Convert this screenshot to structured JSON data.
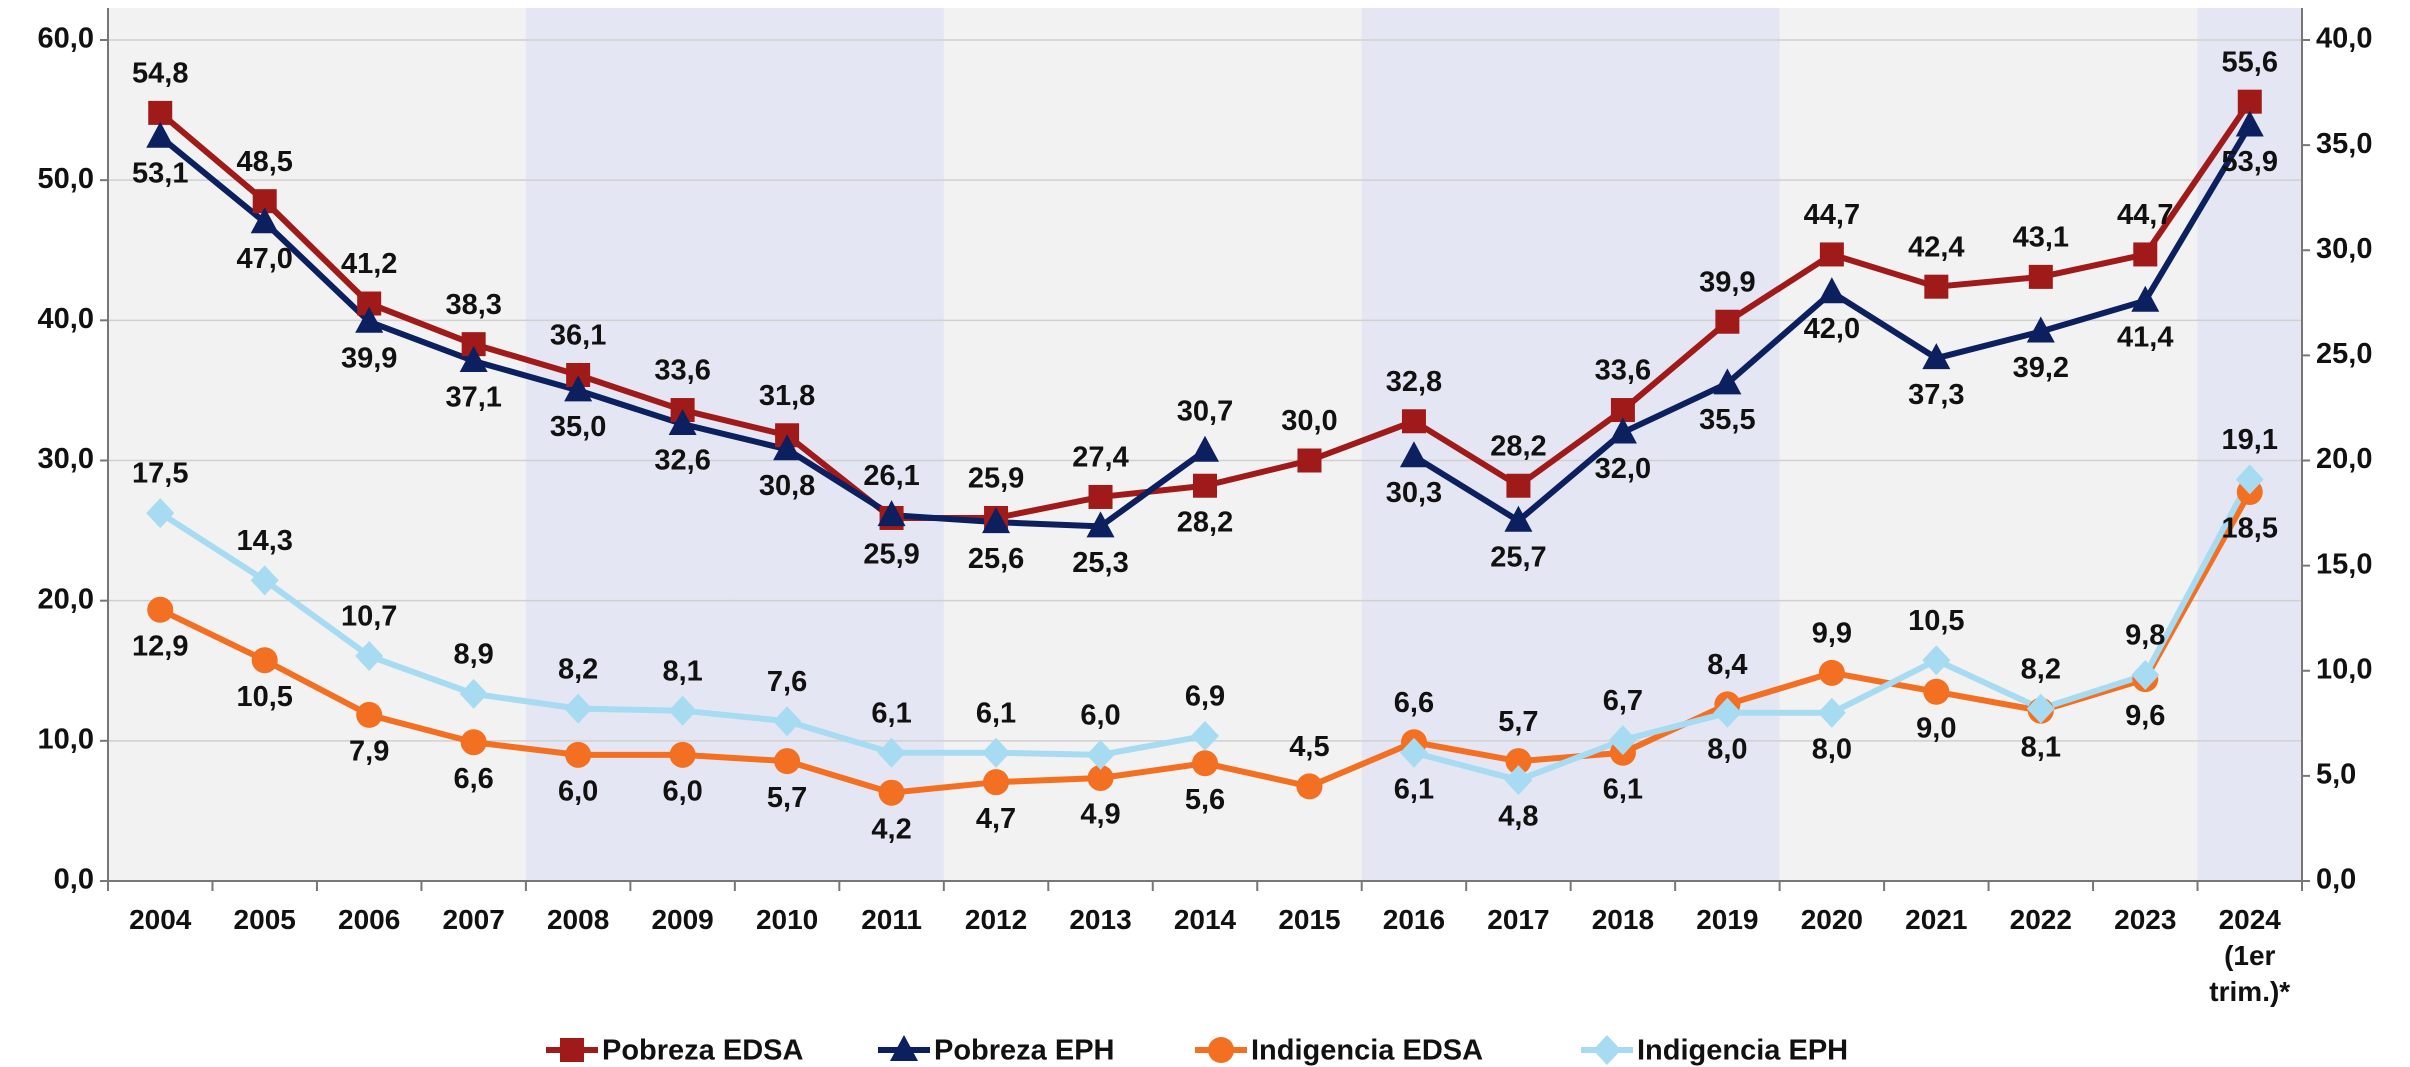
{
  "chart_data": {
    "type": "line",
    "categories": [
      "2004",
      "2005",
      "2006",
      "2007",
      "2008",
      "2009",
      "2010",
      "2011",
      "2012",
      "2013",
      "2014",
      "2015",
      "2016",
      "2017",
      "2018",
      "2019",
      "2020",
      "2021",
      "2022",
      "2023",
      "2024\n(1er\ntrim.)*"
    ],
    "ylim": [
      0,
      60
    ],
    "yticks": [
      {
        "value": 0,
        "label": "0,0"
      },
      {
        "value": 10,
        "label": "10,0"
      },
      {
        "value": 20,
        "label": "20,0"
      },
      {
        "value": 30,
        "label": "30,0"
      },
      {
        "value": 40,
        "label": "40,0"
      },
      {
        "value": 50,
        "label": "50,0"
      },
      {
        "value": 60,
        "label": "60,0"
      }
    ],
    "y2lim": [
      0,
      40
    ],
    "y2ticks": [
      {
        "value": 0,
        "label": "0,0"
      },
      {
        "value": 5,
        "label": "5,0"
      },
      {
        "value": 10,
        "label": "10,0"
      },
      {
        "value": 15,
        "label": "15,0"
      },
      {
        "value": 20,
        "label": "20,0"
      },
      {
        "value": 25,
        "label": "25,0"
      },
      {
        "value": 30,
        "label": "30,0"
      },
      {
        "value": 35,
        "label": "35,0"
      },
      {
        "value": 40,
        "label": "40,0"
      }
    ],
    "grid": true,
    "legend": "bottom",
    "series": [
      {
        "name": "Pobreza EDSA",
        "color": "#a01a1a",
        "marker": "square",
        "values": [
          54.8,
          48.5,
          41.2,
          38.3,
          36.1,
          33.6,
          31.8,
          25.9,
          25.9,
          27.4,
          28.2,
          30.0,
          32.8,
          28.2,
          33.6,
          39.9,
          44.7,
          42.4,
          43.1,
          44.7,
          55.6
        ],
        "value_labels": [
          "54,8",
          "48,5",
          "41,2",
          "38,3",
          "36,1",
          "33,6",
          "31,8",
          "25,9",
          "25,9",
          "27,4",
          "28,2",
          "30,0",
          "32,8",
          "28,2",
          "33,6",
          "39,9",
          "44,7",
          "42,4",
          "43,1",
          "44,7",
          "55,6"
        ]
      },
      {
        "name": "Pobreza EPH",
        "color": "#0c1f5e",
        "marker": "triangle",
        "values": [
          53.1,
          47.0,
          39.9,
          37.1,
          35.0,
          32.6,
          30.8,
          26.1,
          25.6,
          25.3,
          30.7,
          null,
          30.3,
          25.7,
          32.0,
          35.5,
          42.0,
          37.3,
          39.2,
          41.4,
          53.9
        ],
        "value_labels": [
          "53,1",
          "47,0",
          "39,9",
          "37,1",
          "35,0",
          "32,6",
          "30,8",
          "26,1",
          "25,6",
          "25,3",
          "30,7",
          null,
          "30,3",
          "25,7",
          "32,0",
          "35,5",
          "42,0",
          "37,3",
          "39,2",
          "41,4",
          "53,9"
        ]
      },
      {
        "name": "Indigencia EDSA",
        "color": "#f36f21",
        "marker": "circle",
        "axis": "y2",
        "values": [
          12.9,
          10.5,
          7.9,
          6.6,
          6.0,
          6.0,
          5.7,
          4.2,
          4.7,
          4.9,
          5.6,
          4.5,
          6.6,
          5.7,
          6.1,
          8.4,
          9.9,
          9.0,
          8.1,
          9.6,
          18.5
        ],
        "value_labels": [
          "12,9",
          "10,5",
          "7,9",
          "6,6",
          "6,0",
          "6,0",
          "5,7",
          "4,2",
          "4,7",
          "4,9",
          "5,6",
          "4,5",
          "6,6",
          "5,7",
          "6,1",
          "8,4",
          "9,9",
          "9,0",
          "8,1",
          "9,6",
          "18,5"
        ]
      },
      {
        "name": "Indigencia EPH",
        "color": "#a7dbf2",
        "marker": "diamond",
        "axis": "y2",
        "values": [
          17.5,
          14.3,
          10.7,
          8.9,
          8.2,
          8.1,
          7.6,
          6.1,
          6.1,
          6.0,
          6.9,
          null,
          6.1,
          4.8,
          6.7,
          8.0,
          8.0,
          10.5,
          8.2,
          9.8,
          19.1
        ],
        "value_labels": [
          "17,5",
          "14,3",
          "10,7",
          "8,9",
          "8,2",
          "8,1",
          "7,6",
          "6,1",
          "6,1",
          "6,0",
          "6,9",
          null,
          "6,1",
          "4,8",
          "6,7",
          "8,0",
          "8,0",
          "10,5",
          "8,2",
          "9,8",
          "19,1"
        ]
      }
    ]
  }
}
